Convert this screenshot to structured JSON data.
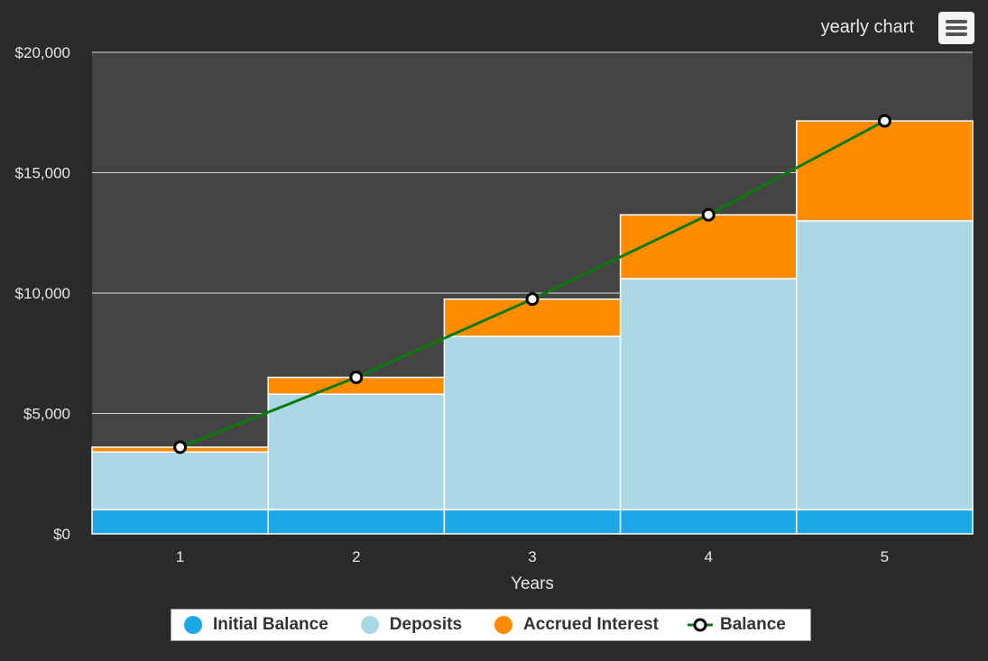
{
  "title": "yearly chart",
  "menu": {
    "icon": "hamburger-menu-icon"
  },
  "colors": {
    "background": "#2a2a2a",
    "plot": "#444444",
    "grid": "#d8d8d8",
    "axis_text": "#e6e6e6",
    "initial_balance": "#1ea7e8",
    "deposits": "#acd8e6",
    "accrued_interest": "#ff8c00",
    "balance_line": "#0b7a0b",
    "marker_fill": "#ffffff",
    "marker_stroke": "#000000"
  },
  "chart_data": {
    "type": "bar",
    "stacked": true,
    "categories": [
      "1",
      "2",
      "3",
      "4",
      "5"
    ],
    "series": [
      {
        "name": "Initial Balance",
        "type": "bar",
        "values": [
          1000,
          1000,
          1000,
          1000,
          1000
        ]
      },
      {
        "name": "Deposits",
        "type": "bar",
        "values": [
          2400,
          4800,
          7200,
          9600,
          12000
        ]
      },
      {
        "name": "Accrued Interest",
        "type": "bar",
        "values": [
          200,
          700,
          1550,
          2650,
          4150
        ]
      },
      {
        "name": "Balance",
        "type": "line",
        "values": [
          3600,
          6500,
          9750,
          13250,
          17150
        ]
      }
    ],
    "xlabel": "Years",
    "ylabel": "",
    "ylim": [
      0,
      20000
    ],
    "yticks": [
      "$0",
      "$5,000",
      "$10,000",
      "$15,000",
      "$20,000"
    ],
    "ytick_values": [
      0,
      5000,
      10000,
      15000,
      20000
    ],
    "grid": true,
    "legend_position": "bottom"
  }
}
